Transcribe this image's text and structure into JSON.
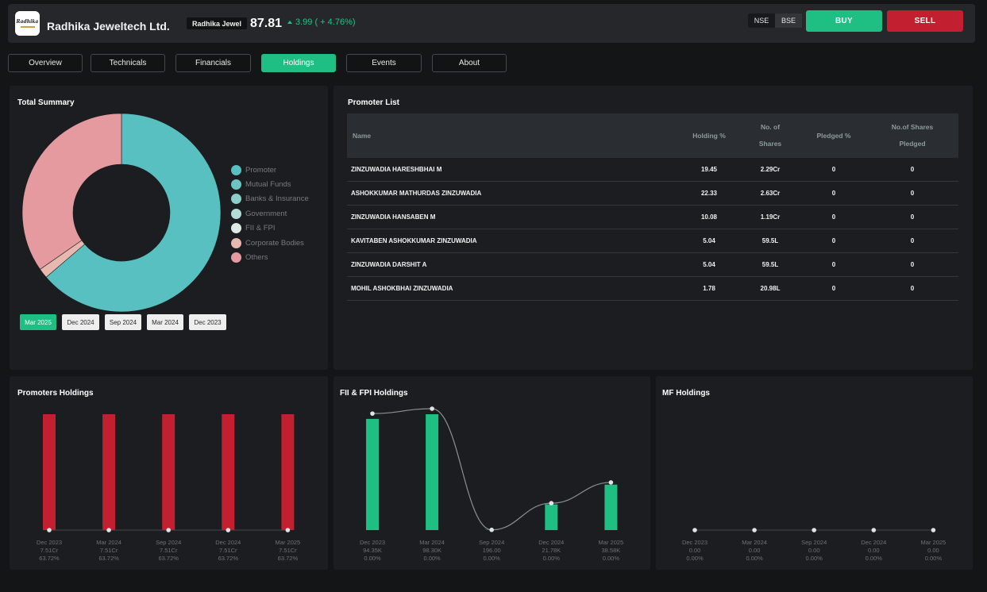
{
  "header": {
    "logo_text": "Radhika",
    "company_name": "Radhika Jeweltech Ltd.",
    "ticker": "Radhika Jewel",
    "price": "87.81",
    "change": "3.99 ( + 4.76%)",
    "exchanges": [
      "NSE",
      "BSE"
    ],
    "buy_label": "BUY",
    "sell_label": "SELL"
  },
  "tabs": [
    "Overview",
    "Technicals",
    "Financials",
    "Holdings",
    "Events",
    "About"
  ],
  "active_tab": "Holdings",
  "summary": {
    "title": "Total Summary",
    "legend": [
      "Promoter",
      "Mutual Funds",
      "Banks & Insurance",
      "Government",
      "FII & FPI",
      "Corporate Bodies",
      "Others"
    ],
    "periods": [
      "Mar 2025",
      "Dec 2024",
      "Sep 2024",
      "Mar 2024",
      "Dec 2023"
    ],
    "active_period": "Mar 2025"
  },
  "promoter_list": {
    "title": "Promoter List",
    "columns": [
      "Name",
      "Holding %",
      "No. of Shares",
      "Pledged %",
      "No.of Shares Pledged"
    ],
    "rows": [
      [
        "ZINZUWADIA HARESHBHAI M",
        "19.45",
        "2.29Cr",
        "0",
        "0"
      ],
      [
        "ASHOKKUMAR MATHURDAS ZINZUWADIA",
        "22.33",
        "2.63Cr",
        "0",
        "0"
      ],
      [
        "ZINZUWADIA HANSABEN M",
        "10.08",
        "1.19Cr",
        "0",
        "0"
      ],
      [
        "KAVITABEN ASHOKKUMAR ZINZUWADIA",
        "5.04",
        "59.5L",
        "0",
        "0"
      ],
      [
        "ZINZUWADIA DARSHIT A",
        "5.04",
        "59.5L",
        "0",
        "0"
      ],
      [
        "MOHIL ASHOKBHAI ZINZUWADIA",
        "1.78",
        "20.98L",
        "0",
        "0"
      ]
    ]
  },
  "chart_data": [
    {
      "type": "pie",
      "title": "Total Summary",
      "categories": [
        "Promoter",
        "Mutual Funds",
        "Banks & Insurance",
        "Government",
        "FII & FPI",
        "Corporate Bodies",
        "Others"
      ],
      "values": [
        63.72,
        0,
        0,
        0,
        0,
        1.6,
        34.68
      ],
      "colors": [
        "#58c0c0",
        "#6cc4c4",
        "#8ccfca",
        "#b3dcd8",
        "#ddeae6",
        "#e7b8ae",
        "#e59a9f"
      ],
      "legend_position": "right"
    },
    {
      "type": "bar",
      "title": "Promoters Holdings",
      "categories": [
        "Dec 2023",
        "Mar 2024",
        "Sep 2024",
        "Dec 2024",
        "Mar 2025"
      ],
      "value_labels": [
        "7.51Cr",
        "7.51Cr",
        "7.51Cr",
        "7.51Cr",
        "7.51Cr"
      ],
      "percent_labels": [
        "63.72%",
        "63.72%",
        "63.72%",
        "63.72%",
        "63.72%"
      ],
      "values": [
        63.72,
        63.72,
        63.72,
        63.72,
        63.72
      ],
      "line_values": [
        0,
        0,
        0,
        0,
        0
      ],
      "bar_color": "#c22030"
    },
    {
      "type": "bar",
      "title": "FII & FPI Holdings",
      "categories": [
        "Dec 2023",
        "Mar 2024",
        "Sep 2024",
        "Dec 2024",
        "Mar 2025"
      ],
      "value_labels": [
        "94.35K",
        "98.30K",
        "196.00",
        "21.78K",
        "38.58K"
      ],
      "percent_labels": [
        "0.00%",
        "0.00%",
        "0.00%",
        "0.00%",
        "0.00%"
      ],
      "values": [
        94350,
        98300,
        196,
        21780,
        38580
      ],
      "line_values": [
        94350,
        98300,
        196,
        21780,
        38580
      ],
      "bar_color": "#1fbf84"
    },
    {
      "type": "bar",
      "title": "MF Holdings",
      "categories": [
        "Dec 2023",
        "Mar 2024",
        "Sep 2024",
        "Dec 2024",
        "Mar 2025"
      ],
      "value_labels": [
        "0.00",
        "0.00",
        "0.00",
        "0.00",
        "0.00"
      ],
      "percent_labels": [
        "0.00%",
        "0.00%",
        "0.00%",
        "0.00%",
        "0.00%"
      ],
      "values": [
        0,
        0,
        0,
        0,
        0
      ],
      "line_values": [
        0,
        0,
        0,
        0,
        0
      ],
      "bar_color": "#1fbf84"
    }
  ]
}
